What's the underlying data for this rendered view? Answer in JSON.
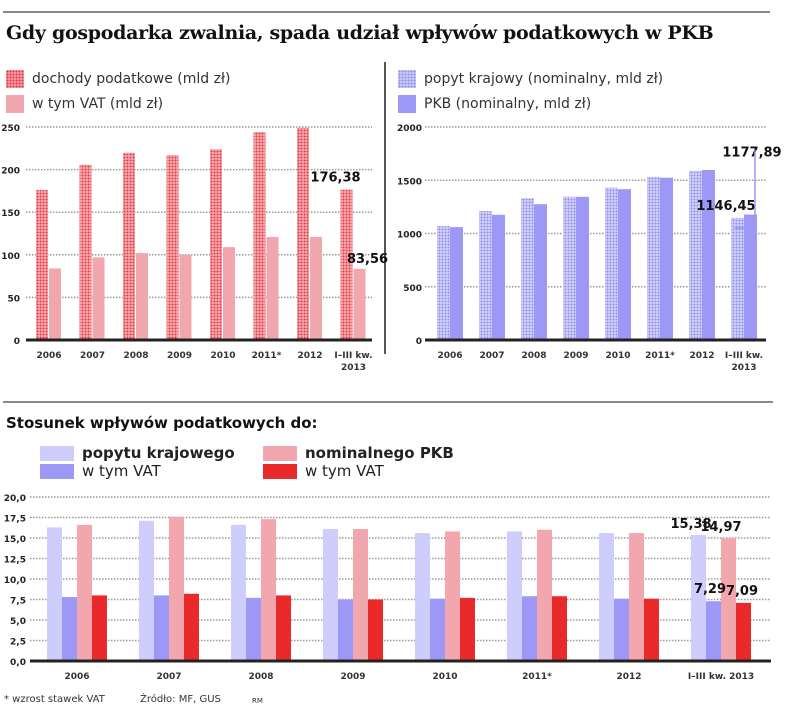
{
  "title": "Gdy gospodarka zwalnia, spada udział wpływów podatkowych w PKB",
  "legend_left": [
    {
      "label": "dochody podatkowe (mld zł)",
      "swatch": "dotted-red"
    },
    {
      "label": "w tym VAT (mld zł)",
      "swatch": "pink"
    }
  ],
  "legend_right": [
    {
      "label": "popyt krajowy (nominalny, mld zł)",
      "swatch": "dotted-blue"
    },
    {
      "label": "PKB (nominalny, mld zł)",
      "swatch": "purple"
    }
  ],
  "subtitle": "Stosunek wpływów podatkowych do:",
  "legend_bottom": [
    {
      "label": "popytu krajowego",
      "bold": true,
      "color": "#cfcdfb"
    },
    {
      "label": "w tym VAT",
      "bold": false,
      "color": "#9d97f5"
    },
    {
      "label": "nominalnego PKB",
      "bold": true,
      "color": "#f2a7ae"
    },
    {
      "label": "w tym VAT",
      "bold": false,
      "color": "#ea2a2a"
    }
  ],
  "footer": {
    "note": "* wzrost stawek VAT",
    "source": "Źródło: MF, GUS",
    "author": "RM"
  },
  "colors": {
    "dotted_red": "#e8323c",
    "pink": "#f2a7ae",
    "dotted_blue": "#8b8bef",
    "purple": "#9d97f5",
    "lavender": "#cfcdfb",
    "red": "#ea2a2a"
  },
  "chart_data": [
    {
      "type": "bar",
      "title": "",
      "categories": [
        "2006",
        "2007",
        "2008",
        "2009",
        "2010",
        "2011*",
        "2012",
        "I–III kw. 2013"
      ],
      "series": [
        {
          "name": "dochody podatkowe (mld zł)",
          "values": [
            176,
            206,
            220,
            217,
            224,
            244,
            249,
            176.38
          ]
        },
        {
          "name": "w tym VAT (mld zł)",
          "values": [
            84,
            97,
            102,
            100,
            109,
            121,
            121,
            83.56
          ]
        }
      ],
      "yticks": [
        "0",
        "50",
        "100",
        "150",
        "200",
        "250"
      ],
      "ylim": [
        0,
        250
      ],
      "data_labels": [
        {
          "series": 0,
          "index": 7,
          "text": "176,38"
        },
        {
          "series": 1,
          "index": 7,
          "text": "83,56"
        }
      ],
      "grid": true,
      "legend": "top-left"
    },
    {
      "type": "bar",
      "title": "",
      "categories": [
        "2006",
        "2007",
        "2008",
        "2009",
        "2010",
        "2011*",
        "2012",
        "I–III kw. 2013"
      ],
      "series": [
        {
          "name": "popyt krajowy (nominalny, mld zł)",
          "values": [
            1070,
            1210,
            1330,
            1345,
            1430,
            1535,
            1590,
            1146.45
          ]
        },
        {
          "name": "PKB (nominalny, mld zł)",
          "values": [
            1060,
            1176,
            1275,
            1344,
            1416,
            1524,
            1596,
            1177.89
          ]
        }
      ],
      "yticks": [
        "0",
        "500",
        "1000",
        "1500",
        "2000"
      ],
      "ylim": [
        0,
        2000
      ],
      "data_labels": [
        {
          "series": 1,
          "index": 7,
          "text": "1177,89"
        },
        {
          "series": 0,
          "index": 7,
          "text": "1146,45"
        }
      ],
      "grid": true,
      "legend": "top-left"
    },
    {
      "type": "bar",
      "title": "Stosunek wpływów podatkowych do:",
      "categories": [
        "2006",
        "2007",
        "2008",
        "2009",
        "2010",
        "2011*",
        "2012",
        "I–III kw. 2013"
      ],
      "series": [
        {
          "name": "popytu krajowego",
          "values": [
            16.3,
            17.1,
            16.6,
            16.1,
            15.6,
            15.8,
            15.6,
            15.38
          ]
        },
        {
          "name": "popytu krajowego – w tym VAT",
          "values": [
            7.8,
            8.0,
            7.7,
            7.5,
            7.6,
            7.9,
            7.6,
            7.29
          ]
        },
        {
          "name": "nominalnego PKB",
          "values": [
            16.6,
            17.6,
            17.3,
            16.1,
            15.8,
            16.0,
            15.6,
            14.97
          ]
        },
        {
          "name": "nominalnego PKB – w tym VAT",
          "values": [
            8.0,
            8.2,
            8.0,
            7.5,
            7.7,
            7.9,
            7.6,
            7.09
          ]
        }
      ],
      "yticks": [
        "0,0",
        "2,5",
        "5,0",
        "7,5",
        "10,0",
        "12,5",
        "15,0",
        "17,5",
        "20,0"
      ],
      "ylim": [
        0,
        20
      ],
      "data_labels": [
        {
          "series": 0,
          "index": 7,
          "text": "15,38"
        },
        {
          "series": 2,
          "index": 7,
          "text": "14,97"
        },
        {
          "series": 1,
          "index": 7,
          "text": "7,29"
        },
        {
          "series": 3,
          "index": 7,
          "text": "7,09"
        }
      ],
      "grid": true,
      "legend": "top"
    }
  ]
}
